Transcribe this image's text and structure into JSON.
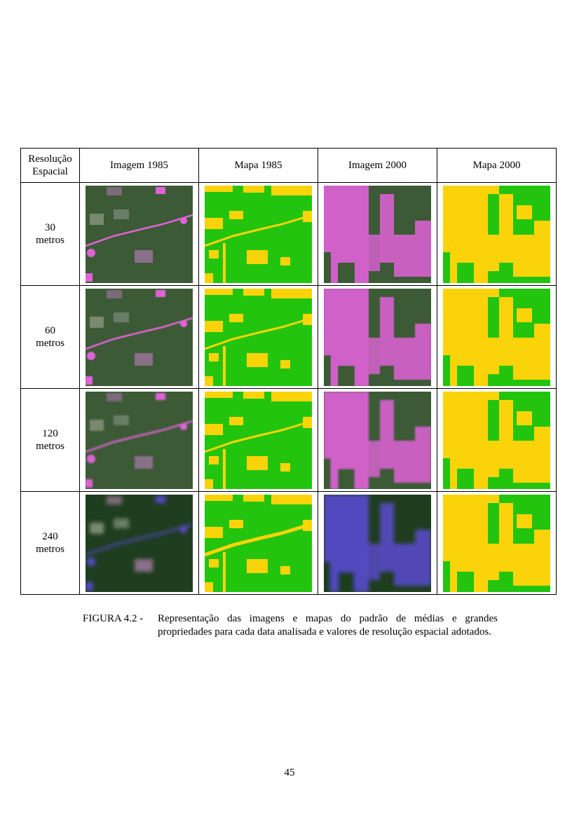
{
  "table": {
    "headers": {
      "resolution": "Resolução\nEspacial",
      "img1985": "Imagem 1985",
      "map1985": "Mapa 1985",
      "img2000": "Imagem 2000",
      "map2000": "Mapa 2000"
    },
    "rows": [
      {
        "resolution": "30\nmetros"
      },
      {
        "resolution": "60\nmetros"
      },
      {
        "resolution": "120\nmetros"
      },
      {
        "resolution": "240\nmetros"
      }
    ]
  },
  "caption": {
    "label": "FIGURA 4.2 -",
    "text": "Representação das imagens e mapas do padrão de médias e grandes propriedades para cada data analisada e valores de resolução espacial adotados."
  },
  "page_number": "45",
  "colors": {
    "map_green": "#22c40e",
    "map_yellow": "#fbd30a",
    "forest": "#3c5a35",
    "deforested_magenta": "#e062d8",
    "image_240m_tint": "#1f3d1f"
  }
}
